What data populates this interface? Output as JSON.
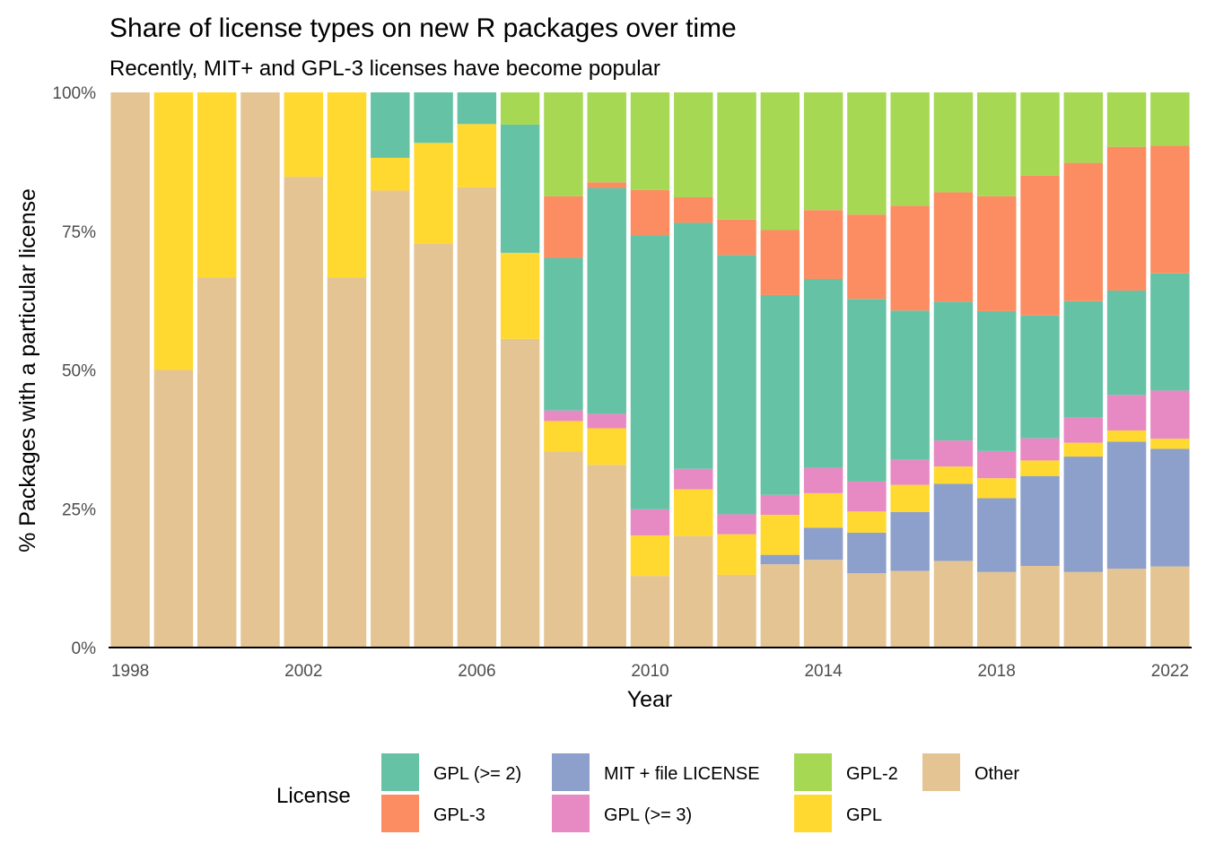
{
  "chart_data": {
    "type": "bar",
    "stacked": true,
    "title": "Share of license types on new R packages over time",
    "subtitle": "Recently, MIT+ and GPL-3 licenses have become popular",
    "xlabel": "Year",
    "ylabel": "% Packages with a particular license",
    "x_ticks": [
      "1998",
      "2002",
      "2006",
      "2010",
      "2014",
      "2018",
      "2022"
    ],
    "y_ticks": [
      "0%",
      "25%",
      "50%",
      "75%",
      "100%"
    ],
    "ylim": [
      0,
      100
    ],
    "grid": false,
    "legend_position": "bottom",
    "legend_title": "License",
    "categories": [
      1998,
      1999,
      2000,
      2001,
      2002,
      2003,
      2004,
      2005,
      2006,
      2007,
      2008,
      2009,
      2010,
      2011,
      2012,
      2013,
      2014,
      2015,
      2016,
      2017,
      2018,
      2019,
      2020,
      2021,
      2022
    ],
    "series": [
      {
        "name": "Other",
        "color": "#E5C494",
        "values": [
          100,
          50,
          66.7,
          100,
          84.8,
          66.7,
          82.4,
          72.7,
          82.9,
          55.6,
          35.3,
          32.9,
          12.9,
          20.1,
          13.1,
          15,
          15.8,
          13.4,
          13.8,
          15.6,
          13.6,
          14.7,
          13.6,
          14.2,
          14.6
        ]
      },
      {
        "name": "MIT + file LICENSE",
        "color": "#8DA0CB",
        "values": [
          0,
          0,
          0,
          0,
          0,
          0,
          0,
          0,
          0,
          0,
          0,
          0,
          0,
          0,
          0,
          1.7,
          5.8,
          7.3,
          10.6,
          13.9,
          13.3,
          16.2,
          20.8,
          22.9,
          21.2
        ]
      },
      {
        "name": "GPL",
        "color": "#FFD92F",
        "values": [
          0,
          50,
          33.3,
          0,
          15.2,
          33.3,
          5.9,
          18.2,
          11.4,
          15.5,
          5.5,
          6.6,
          7.3,
          8.4,
          7.3,
          7.2,
          6.2,
          3.8,
          4.9,
          3.1,
          3.6,
          2.8,
          2.5,
          2,
          1.8
        ]
      },
      {
        "name": "GPL (>= 3)",
        "color": "#E78AC3",
        "values": [
          0,
          0,
          0,
          0,
          0,
          0,
          0,
          0,
          0,
          0,
          1.9,
          2.6,
          4.7,
          3.7,
          3.6,
          3.6,
          4.6,
          5.4,
          4.5,
          4.7,
          4.9,
          4,
          4.5,
          6.4,
          8.7
        ]
      },
      {
        "name": "GPL (>= 2)",
        "color": "#66C2A5",
        "values": [
          0,
          0,
          0,
          0,
          0,
          0,
          11.8,
          9.1,
          5.7,
          23.1,
          27.5,
          40.7,
          49.4,
          44.3,
          46.7,
          36,
          34,
          32.9,
          26.9,
          25,
          25.2,
          22.1,
          21,
          18.8,
          21.1
        ]
      },
      {
        "name": "GPL-3",
        "color": "#FC8D62",
        "values": [
          0,
          0,
          0,
          0,
          0,
          0,
          0,
          0,
          0,
          0,
          11.1,
          1,
          8.1,
          4.6,
          6.4,
          11.7,
          12.4,
          15.2,
          18.9,
          19.7,
          20.7,
          25.2,
          24.9,
          25.9,
          23
        ]
      },
      {
        "name": "GPL-2",
        "color": "#A6D854",
        "values": [
          0,
          0,
          0,
          0,
          0,
          0,
          0,
          0,
          0,
          5.8,
          18.7,
          16.2,
          17.6,
          18.9,
          22.9,
          24.8,
          21.2,
          22,
          20.4,
          18,
          18.7,
          15,
          12.7,
          9.8,
          9.6
        ]
      }
    ],
    "legend_items": [
      {
        "label": "GPL (>= 2)",
        "color": "#66C2A5"
      },
      {
        "label": "GPL-3",
        "color": "#FC8D62"
      },
      {
        "label": "MIT + file LICENSE",
        "color": "#8DA0CB"
      },
      {
        "label": "GPL (>= 3)",
        "color": "#E78AC3"
      },
      {
        "label": "GPL-2",
        "color": "#A6D854"
      },
      {
        "label": "GPL",
        "color": "#FFD92F"
      },
      {
        "label": "Other",
        "color": "#E5C494"
      }
    ]
  }
}
